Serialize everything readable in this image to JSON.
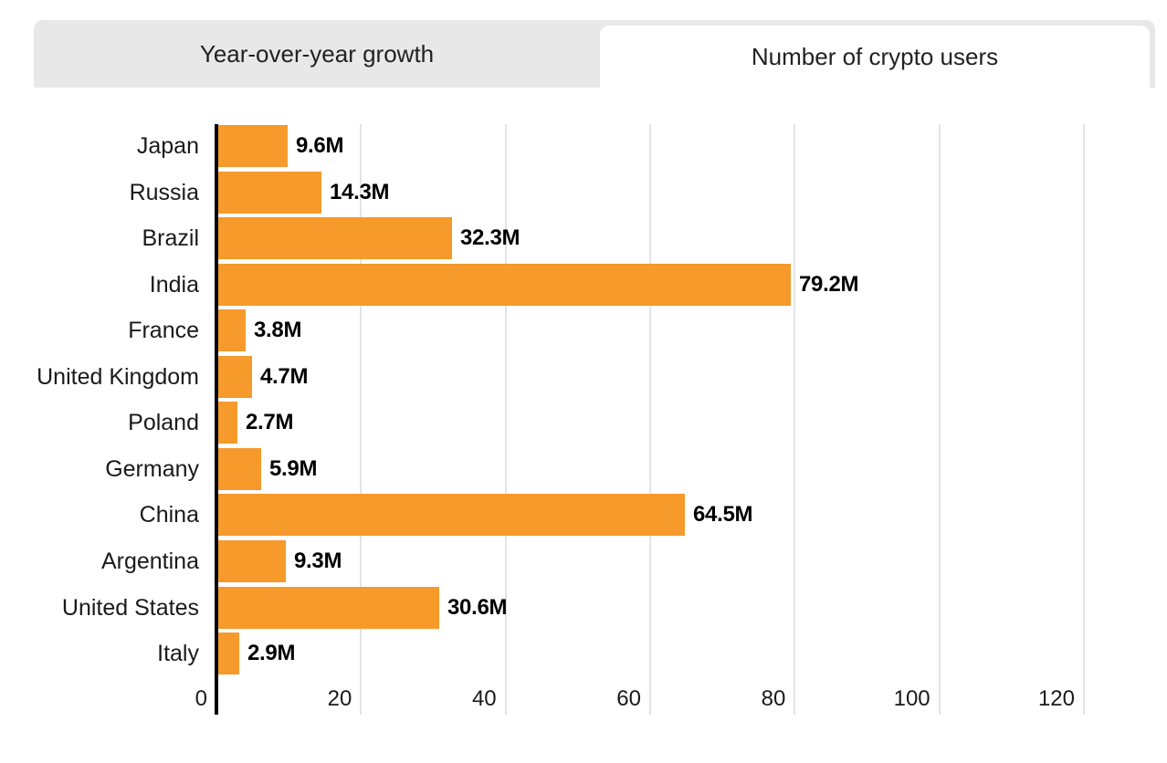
{
  "tabs": [
    {
      "label": "Year-over-year growth",
      "active": false
    },
    {
      "label": "Number of crypto users",
      "active": true
    }
  ],
  "colors": {
    "bar": "#F59A2B",
    "axis": "#000000",
    "gridline": "#E4E4E4",
    "tab_strip_bg": "#E8E8E8",
    "active_tab_bg": "#FFFFFF",
    "text": "#1A1A1A"
  },
  "chart_data": {
    "type": "bar",
    "orientation": "horizontal",
    "title": "Number of crypto users",
    "categories": [
      "Japan",
      "Russia",
      "Brazil",
      "India",
      "France",
      "United Kingdom",
      "Poland",
      "Germany",
      "China",
      "Argentina",
      "United States",
      "Italy"
    ],
    "values": [
      9.6,
      14.3,
      32.3,
      79.2,
      3.8,
      4.7,
      2.7,
      5.9,
      64.5,
      9.3,
      30.6,
      2.9
    ],
    "value_labels": [
      "9.6M",
      "14.3M",
      "32.3M",
      "79.2M",
      "3.8M",
      "4.7M",
      "2.7M",
      "5.9M",
      "64.5M",
      "9.3M",
      "30.6M",
      "2.9M"
    ],
    "unit": "millions of users",
    "x_ticks": [
      0,
      20,
      40,
      60,
      80,
      100,
      120
    ],
    "xlim": [
      0,
      120
    ],
    "xlabel": "",
    "ylabel": "",
    "grid": true,
    "legend": false
  }
}
